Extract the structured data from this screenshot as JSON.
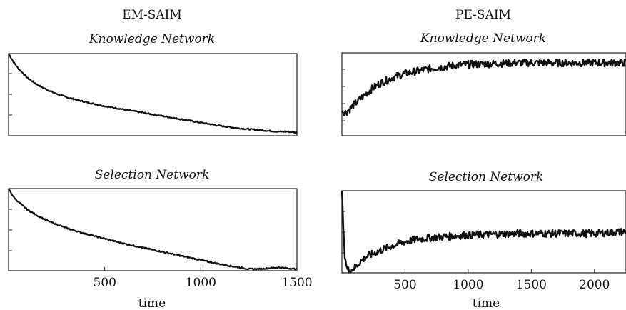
{
  "chart_data": [
    {
      "type": "line",
      "column_title": "EM-SAIM",
      "title": "Knowledge Network",
      "xlabel": "",
      "ylabel": "",
      "xlim": [
        0,
        1500
      ],
      "x_ticks": [],
      "x": [
        0,
        25,
        50,
        100,
        150,
        200,
        250,
        300,
        400,
        500,
        600,
        700,
        800,
        900,
        1000,
        1100,
        1200,
        1300,
        1400,
        1450,
        1500
      ],
      "series": [
        {
          "values": [
            1.0,
            0.9,
            0.82,
            0.7,
            0.62,
            0.56,
            0.51,
            0.47,
            0.41,
            0.36,
            0.32,
            0.28,
            0.24,
            0.2,
            0.16,
            0.12,
            0.09,
            0.07,
            0.05,
            0.05,
            0.04
          ]
        }
      ]
    },
    {
      "type": "line",
      "column_title": "PE-SAIM",
      "title": "Knowledge Network",
      "xlabel": "",
      "ylabel": "",
      "xlim": [
        0,
        2250
      ],
      "x_ticks": [],
      "x": [
        0,
        30,
        60,
        100,
        150,
        200,
        250,
        300,
        400,
        500,
        600,
        700,
        800,
        900,
        1000,
        1200,
        1400,
        1600,
        1800,
        2000,
        2250
      ],
      "series": [
        {
          "values": [
            0.3,
            0.28,
            0.32,
            0.38,
            0.45,
            0.52,
            0.58,
            0.63,
            0.7,
            0.75,
            0.78,
            0.81,
            0.83,
            0.85,
            0.86,
            0.87,
            0.88,
            0.88,
            0.88,
            0.88,
            0.88
          ]
        }
      ]
    },
    {
      "type": "line",
      "column_title": "",
      "title": "Selection Network",
      "xlabel": "time",
      "ylabel": "",
      "xlim": [
        0,
        1500
      ],
      "x_ticks": [
        500,
        1000,
        1500
      ],
      "x": [
        0,
        25,
        50,
        100,
        150,
        200,
        300,
        400,
        500,
        600,
        700,
        800,
        900,
        1000,
        1100,
        1200,
        1250,
        1300,
        1400,
        1450,
        1500
      ],
      "series": [
        {
          "values": [
            1.0,
            0.9,
            0.84,
            0.74,
            0.67,
            0.61,
            0.52,
            0.45,
            0.39,
            0.33,
            0.28,
            0.23,
            0.18,
            0.13,
            0.08,
            0.04,
            0.02,
            0.02,
            0.04,
            0.03,
            0.02
          ]
        }
      ]
    },
    {
      "type": "line",
      "column_title": "",
      "title": "Selection Network",
      "xlabel": "time",
      "ylabel": "",
      "xlim": [
        0,
        2250
      ],
      "x_ticks": [
        500,
        1000,
        1500,
        2000
      ],
      "x": [
        0,
        10,
        20,
        40,
        60,
        100,
        150,
        200,
        300,
        400,
        500,
        600,
        800,
        1000,
        1200,
        1400,
        1600,
        1800,
        2000,
        2100,
        2250
      ],
      "series": [
        {
          "values": [
            1.0,
            0.6,
            0.25,
            0.05,
            0.02,
            0.06,
            0.14,
            0.2,
            0.27,
            0.33,
            0.38,
            0.41,
            0.44,
            0.46,
            0.47,
            0.48,
            0.48,
            0.48,
            0.48,
            0.49,
            0.5
          ]
        }
      ]
    }
  ]
}
